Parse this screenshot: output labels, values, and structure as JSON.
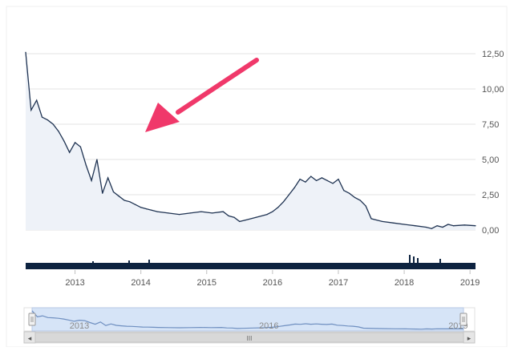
{
  "chart_data": {
    "type": "area",
    "title": "",
    "xlabel": "",
    "ylabel": "",
    "ylim": [
      0,
      12.5
    ],
    "y_ticks": [
      "12,50",
      "10,00",
      "7,50",
      "5,00",
      "2,50",
      "0,00"
    ],
    "y_tick_values": [
      12.5,
      10.0,
      7.5,
      5.0,
      2.5,
      0.0
    ],
    "x_ticks": [
      "2013",
      "2014",
      "2015",
      "2016",
      "2017",
      "2018",
      "2019"
    ],
    "x_range": [
      "2012-04",
      "2019-02"
    ],
    "grid": true,
    "series": [
      {
        "values_x": [
          "2012-04",
          "2012-05",
          "2012-06",
          "2012-07",
          "2012-08",
          "2012-09",
          "2012-10",
          "2012-11",
          "2012-12",
          "2013-01",
          "2013-02",
          "2013-03",
          "2013-04",
          "2013-05",
          "2013-06",
          "2013-07",
          "2013-08",
          "2013-09",
          "2013-10",
          "2013-11",
          "2013-12",
          "2014-01",
          "2014-02",
          "2014-03",
          "2014-04",
          "2014-06",
          "2014-08",
          "2014-10",
          "2014-12",
          "2015-02",
          "2015-04",
          "2015-05",
          "2015-06",
          "2015-07",
          "2015-08",
          "2015-10",
          "2015-12",
          "2016-01",
          "2016-02",
          "2016-03",
          "2016-04",
          "2016-05",
          "2016-06",
          "2016-07",
          "2016-08",
          "2016-09",
          "2016-10",
          "2016-11",
          "2016-12",
          "2017-01",
          "2017-02",
          "2017-03",
          "2017-04",
          "2017-05",
          "2017-06",
          "2017-07",
          "2017-09",
          "2017-11",
          "2018-01",
          "2018-03",
          "2018-05",
          "2018-06",
          "2018-07",
          "2018-08",
          "2018-09",
          "2018-10",
          "2018-12",
          "2019-02"
        ],
        "values": [
          12.6,
          8.5,
          9.2,
          8.0,
          7.8,
          7.5,
          7.0,
          6.3,
          5.5,
          6.2,
          5.9,
          4.6,
          3.5,
          5.0,
          2.6,
          3.7,
          2.7,
          2.4,
          2.1,
          2.0,
          1.8,
          1.6,
          1.5,
          1.4,
          1.3,
          1.2,
          1.1,
          1.2,
          1.3,
          1.2,
          1.3,
          1.0,
          0.9,
          0.6,
          0.7,
          0.9,
          1.1,
          1.3,
          1.6,
          2.0,
          2.5,
          3.0,
          3.6,
          3.4,
          3.8,
          3.5,
          3.7,
          3.5,
          3.3,
          3.6,
          2.8,
          2.6,
          2.3,
          2.1,
          1.7,
          0.8,
          0.6,
          0.5,
          0.4,
          0.3,
          0.2,
          0.1,
          0.3,
          0.2,
          0.4,
          0.3,
          0.35,
          0.3
        ]
      }
    ],
    "volume": "bars",
    "navigator": {
      "x_ticks": [
        "2013",
        "2016",
        "2019"
      ]
    }
  },
  "colors": {
    "line": "#1f3352",
    "area_fill": "#eef2f8",
    "grid": "#e3e3e3",
    "volume": "#0d2340",
    "navigator_fill": "#d6e4f7",
    "navigator_line": "#6f8fc0",
    "arrow": "#f0386a"
  },
  "navigator_scrollbar": {
    "left_arrow": "◂",
    "right_arrow": "▸",
    "grip": "III"
  }
}
